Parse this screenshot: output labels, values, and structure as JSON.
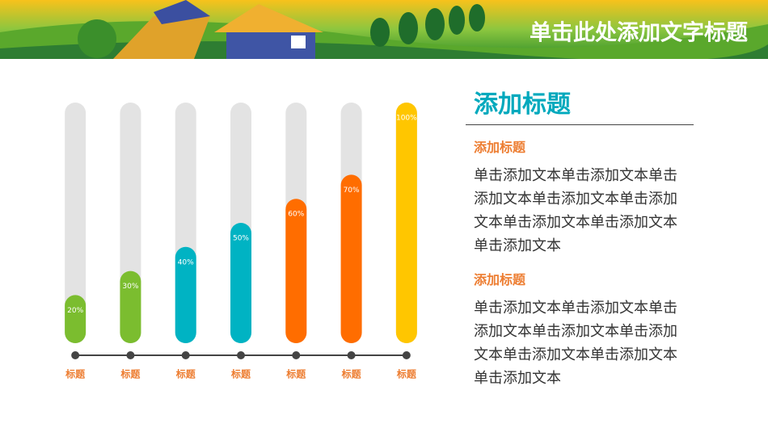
{
  "header": {
    "title": "单击此处添加文字标题"
  },
  "chart_data": {
    "type": "bar",
    "categories": [
      "标题",
      "标题",
      "标题",
      "标题",
      "标题",
      "标题",
      "标题"
    ],
    "values": [
      20,
      30,
      40,
      50,
      60,
      70,
      100
    ],
    "value_labels": [
      "20%",
      "30%",
      "40%",
      "50%",
      "60%",
      "70%",
      "100%"
    ],
    "colors": [
      "#7bbd2f",
      "#7bbd2f",
      "#00b3c3",
      "#00b3c3",
      "#ff6d00",
      "#ff6d00",
      "#ffc600"
    ],
    "ylim": [
      0,
      100
    ]
  },
  "panel": {
    "title": "添加标题",
    "sections": [
      {
        "heading": "添加标题",
        "body": "单击添加文本单击添加文本单击添加文本单击添加文本单击添加文本单击添加文本单击添加文本单击添加文本"
      },
      {
        "heading": "添加标题",
        "body": "单击添加文本单击添加文本单击添加文本单击添加文本单击添加文本单击添加文本单击添加文本单击添加文本"
      }
    ]
  }
}
